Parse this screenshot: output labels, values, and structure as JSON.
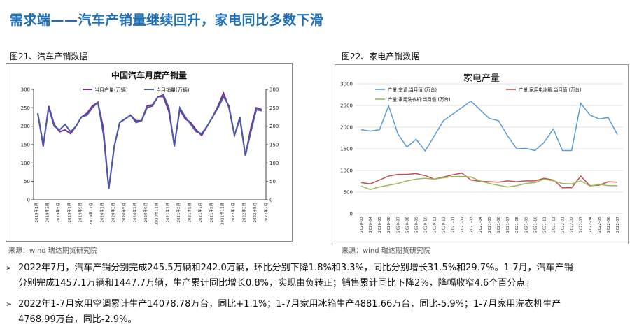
{
  "page": {
    "title": "需求端——汽车产销量继续回升，家电同比多数下滑"
  },
  "figure21": {
    "label": "图21、汽车产销数据",
    "source": "来源：wind   瑞达期货研究院"
  },
  "figure22": {
    "label": "图22、家电产销数据",
    "source": "来源：wind   瑞达期货研究院"
  },
  "bullets": [
    {
      "line1": "2022年7月，汽车产销分别完成245.5万辆和242.0万辆，环比分别下降1.8%和3.3%，同比分别增长31.5%和29.7%。1-7月，汽车产销",
      "line2": "分别完成1457.1万辆和1447.7万辆，生产累计同比增长0.8%，实现由负转正；销售累计同比下降2%，降幅收窄4.6个百分点。"
    },
    {
      "line1": "2022年1-7月家用空调累计生产14078.78万台，同比+1.1%；1-7月家用冰箱生产4881.66万台，同比-5.9%；1-7月家用洗衣机生产",
      "line2": "4768.99万台，同比-2.9%。"
    }
  ],
  "chart_data": [
    {
      "type": "line",
      "title": "中国汽车月度产销量",
      "legend": [
        "当月产量(万辆)",
        "当月销量(万辆)"
      ],
      "colors": [
        "#7b2c8f",
        "#4b5aa8"
      ],
      "ylim": [
        0,
        300
      ],
      "yticks": [
        0,
        50,
        100,
        150,
        200,
        250,
        300
      ],
      "xticklabels": [
        "2019年1月",
        "2019年3月",
        "2019年5月",
        "2019年7月",
        "2019年9月",
        "2019年11月",
        "2020年1月",
        "2020年3月",
        "2020年5月",
        "2020年7月",
        "2020年9月",
        "2020年11月",
        "2021年1月",
        "2021年3月",
        "2021年5月",
        "2021年7月",
        "2021年9月",
        "2021年11月",
        "2022年1月",
        "2022年3月",
        "2022年5月",
        "2022年7月"
      ],
      "series": [
        {
          "name": "当月产量(万辆)",
          "values": [
            235,
            145,
            255,
            205,
            185,
            190,
            180,
            200,
            225,
            235,
            255,
            265,
            195,
            30,
            145,
            210,
            220,
            230,
            215,
            215,
            255,
            258,
            280,
            280,
            240,
            150,
            245,
            220,
            210,
            190,
            175,
            200,
            225,
            255,
            290,
            250,
            175,
            220,
            120,
            195,
            250,
            245
          ]
        },
        {
          "name": "当月销量(万辆)",
          "values": [
            235,
            150,
            250,
            200,
            190,
            205,
            185,
            200,
            225,
            230,
            250,
            265,
            180,
            30,
            145,
            210,
            220,
            230,
            210,
            215,
            250,
            255,
            280,
            285,
            250,
            145,
            250,
            225,
            205,
            185,
            180,
            200,
            225,
            250,
            280,
            255,
            175,
            225,
            120,
            185,
            245,
            242
          ]
        }
      ]
    },
    {
      "type": "line",
      "title": "家电产量",
      "legend": [
        "产量:空调:当月值 (万台)",
        "产量:家用电冰箱:当月值 (万台)",
        "产量:家用洗衣机:当月值 (万台)"
      ],
      "colors": [
        "#5b9bd5",
        "#c0504d",
        "#9bbb59"
      ],
      "ylim": [
        0,
        3000
      ],
      "yticks": [
        0,
        500,
        1000,
        1500,
        2000,
        2500,
        3000
      ],
      "categories": [
        "2020-03",
        "2020-04",
        "2020-05",
        "2020-06",
        "2020-07",
        "2020-08",
        "2020-09",
        "2020-10",
        "2020-11",
        "2020-12",
        "2021-01",
        "2021-02",
        "2021-03",
        "2021-04",
        "2021-05",
        "2021-06",
        "2021-07",
        "2021-08",
        "2021-09",
        "2021-10",
        "2021-11",
        "2021-12",
        "2022-01",
        "2022-02",
        "2022-03",
        "2022-04",
        "2022-05",
        "2022-06",
        "2022-07"
      ],
      "series": [
        {
          "name": "产量:空调:当月值 (万台)",
          "values": [
            1940,
            1910,
            1940,
            2490,
            1850,
            1540,
            1720,
            1450,
            1800,
            2150,
            2300,
            2450,
            2600,
            2400,
            2200,
            2150,
            1800,
            1500,
            1510,
            1460,
            1650,
            1960,
            1460,
            1460,
            2550,
            2280,
            2190,
            2220,
            1830
          ]
        },
        {
          "name": "产量:家用电冰箱:当月值 (万台)",
          "values": [
            720,
            690,
            780,
            870,
            910,
            910,
            930,
            880,
            800,
            850,
            900,
            940,
            780,
            750,
            740,
            730,
            760,
            740,
            760,
            760,
            820,
            780,
            600,
            600,
            870,
            650,
            660,
            740,
            730
          ]
        },
        {
          "name": "产量:家用洗衣机:当月值 (万台)",
          "values": [
            640,
            560,
            620,
            660,
            700,
            760,
            800,
            820,
            800,
            830,
            860,
            860,
            850,
            760,
            700,
            660,
            620,
            650,
            700,
            720,
            800,
            760,
            700,
            690,
            760,
            640,
            680,
            650,
            650
          ]
        }
      ]
    }
  ]
}
